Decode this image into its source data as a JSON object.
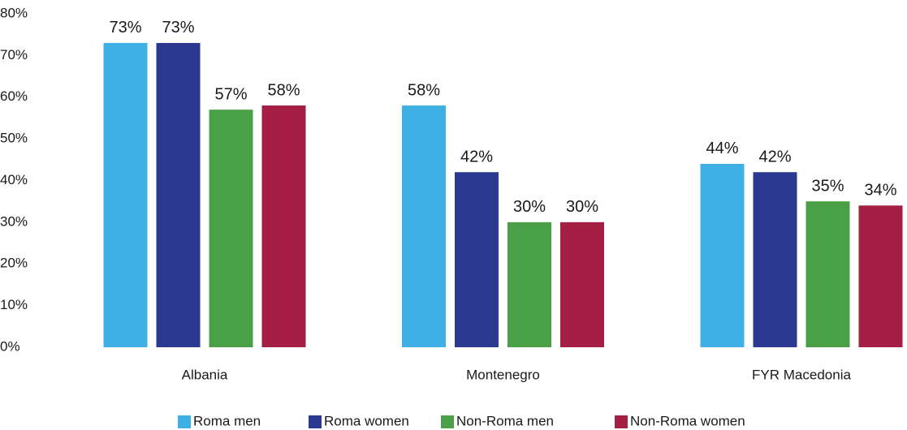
{
  "chart_data": {
    "type": "bar",
    "categories": [
      "Albania",
      "Montenegro",
      "FYR Macedonia"
    ],
    "series": [
      {
        "name": "Roma men",
        "color": "#3eb0e4",
        "values": [
          73,
          58,
          44
        ],
        "value_labels": [
          "73%",
          "58%",
          "44%"
        ]
      },
      {
        "name": "Roma women",
        "color": "#2b3990",
        "values": [
          73,
          42,
          42
        ],
        "value_labels": [
          "73%",
          "42%",
          "42%"
        ]
      },
      {
        "name": "Non-Roma men",
        "color": "#4aa047",
        "values": [
          57,
          30,
          35
        ],
        "value_labels": [
          "57%",
          "30%",
          "35%"
        ]
      },
      {
        "name": "Non-Roma women",
        "color": "#a51f45",
        "values": [
          58,
          30,
          34
        ],
        "value_labels": [
          "58%",
          "30%",
          "34%"
        ]
      }
    ],
    "ylim": [
      0,
      80
    ],
    "yticks": [
      {
        "value": 0,
        "label": "0%"
      },
      {
        "value": 10,
        "label": "10%"
      },
      {
        "value": 20,
        "label": "20%"
      },
      {
        "value": 30,
        "label": "30%"
      },
      {
        "value": 40,
        "label": "40%"
      },
      {
        "value": 50,
        "label": "50%"
      },
      {
        "value": 60,
        "label": "60%"
      },
      {
        "value": 70,
        "label": "70%"
      },
      {
        "value": 80,
        "label": "80%"
      }
    ],
    "grid": false,
    "legend": "bottom"
  }
}
